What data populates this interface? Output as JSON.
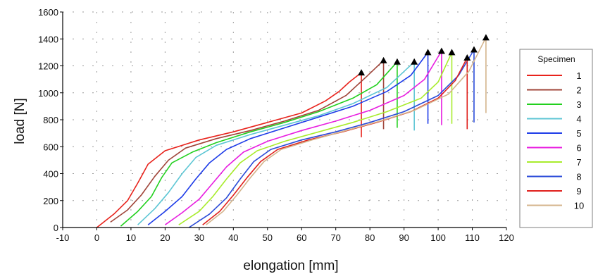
{
  "chart_data": {
    "type": "line",
    "xlabel": "elongation [mm]",
    "ylabel": "load [N]",
    "xlim": [
      -10,
      120
    ],
    "ylim": [
      0,
      1600
    ],
    "xticks": [
      -10,
      0,
      10,
      20,
      30,
      40,
      50,
      60,
      70,
      80,
      90,
      100,
      110,
      120
    ],
    "yticks": [
      0,
      200,
      400,
      600,
      800,
      1000,
      1200,
      1400,
      1600
    ],
    "grid": "dotted",
    "legend": {
      "title": "Specimen",
      "placement": "right"
    },
    "series": [
      {
        "name": "1",
        "color": "#e8231c",
        "x": [
          0,
          5,
          9,
          12,
          15,
          20,
          30,
          40,
          50,
          60,
          67,
          71,
          74,
          77.5
        ],
        "y": [
          0,
          100,
          200,
          330,
          470,
          570,
          650,
          710,
          780,
          850,
          940,
          1010,
          1080,
          1150
        ],
        "break": {
          "x": 77.5,
          "y_peak": 1150,
          "y_end": 670
        }
      },
      {
        "name": "2",
        "color": "#a0453a",
        "x": [
          4,
          9,
          13,
          17,
          21,
          26,
          35,
          45,
          55,
          65,
          73,
          79,
          84
        ],
        "y": [
          40,
          130,
          240,
          380,
          500,
          590,
          660,
          720,
          790,
          870,
          980,
          1120,
          1240
        ],
        "break": {
          "x": 84,
          "y_peak": 1240,
          "y_end": 730
        }
      },
      {
        "name": "3",
        "color": "#22d01e",
        "x": [
          7,
          12,
          16,
          19,
          22,
          28,
          35,
          45,
          55,
          65,
          75,
          82,
          88
        ],
        "y": [
          10,
          120,
          230,
          370,
          480,
          560,
          630,
          710,
          780,
          860,
          960,
          1060,
          1230
        ],
        "break": {
          "x": 88,
          "y_peak": 1230,
          "y_end": 740
        }
      },
      {
        "name": "4",
        "color": "#5cc6d4",
        "x": [
          12,
          17,
          21,
          25,
          29,
          35,
          45,
          55,
          65,
          75,
          85,
          93
        ],
        "y": [
          20,
          140,
          260,
          400,
          520,
          610,
          690,
          760,
          830,
          920,
          1040,
          1230
        ],
        "break": {
          "x": 93,
          "y_peak": 1230,
          "y_end": 720
        }
      },
      {
        "name": "5",
        "color": "#1e3ce8",
        "x": [
          15,
          20,
          25,
          29,
          33,
          38,
          45,
          55,
          65,
          75,
          85,
          92,
          97
        ],
        "y": [
          20,
          120,
          230,
          360,
          480,
          580,
          660,
          740,
          820,
          900,
          1010,
          1130,
          1300
        ],
        "break": {
          "x": 97,
          "y_peak": 1300,
          "y_end": 770
        }
      },
      {
        "name": "6",
        "color": "#e81ee0",
        "x": [
          20,
          25,
          30,
          34,
          38,
          43,
          50,
          60,
          70,
          80,
          90,
          96,
          101
        ],
        "y": [
          20,
          110,
          210,
          330,
          450,
          560,
          640,
          720,
          790,
          870,
          980,
          1100,
          1310
        ],
        "break": {
          "x": 101,
          "y_peak": 1310,
          "y_end": 760
        }
      },
      {
        "name": "7",
        "color": "#a8ec2c",
        "x": [
          24,
          30,
          34,
          38,
          42,
          47,
          55,
          65,
          75,
          85,
          95,
          100,
          104
        ],
        "y": [
          20,
          120,
          230,
          360,
          480,
          570,
          640,
          710,
          780,
          860,
          960,
          1080,
          1300
        ],
        "break": {
          "x": 104,
          "y_peak": 1300,
          "y_end": 770
        }
      },
      {
        "name": "8",
        "color": "#2a4ad8",
        "x": [
          27,
          33,
          38,
          42,
          46,
          51,
          60,
          70,
          80,
          90,
          100,
          106,
          110.5
        ],
        "y": [
          0,
          100,
          220,
          360,
          490,
          580,
          650,
          710,
          780,
          860,
          980,
          1130,
          1320
        ],
        "break": {
          "x": 110.5,
          "y_peak": 1320,
          "y_end": 780
        }
      },
      {
        "name": "9",
        "color": "#e0201c",
        "x": [
          31,
          36,
          40,
          44,
          48,
          53,
          62,
          72,
          82,
          92,
          100,
          105,
          108.5
        ],
        "y": [
          20,
          120,
          240,
          370,
          490,
          580,
          650,
          710,
          780,
          860,
          960,
          1090,
          1260
        ],
        "break": {
          "x": 108.5,
          "y_peak": 1260,
          "y_end": 730
        }
      },
      {
        "name": "10",
        "color": "#d4b48c",
        "x": [
          32,
          37,
          41,
          45,
          49,
          54,
          63,
          73,
          83,
          93,
          103,
          109,
          114
        ],
        "y": [
          20,
          120,
          240,
          370,
          490,
          580,
          650,
          720,
          790,
          870,
          990,
          1160,
          1410
        ],
        "break": {
          "x": 114,
          "y_peak": 1410,
          "y_end": 850
        }
      }
    ]
  }
}
